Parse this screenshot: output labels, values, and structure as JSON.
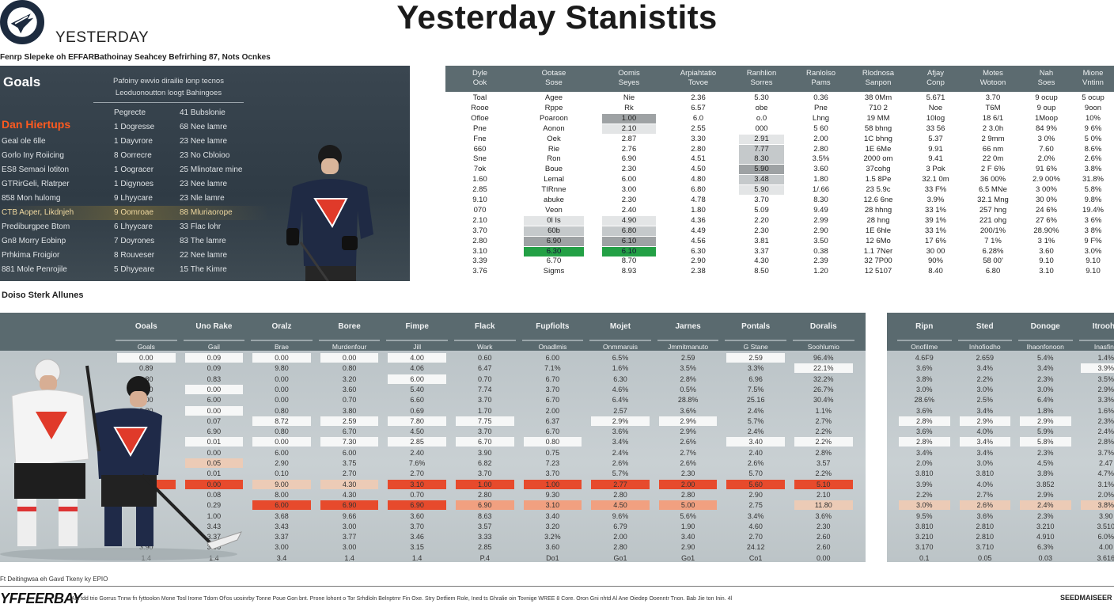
{
  "header": {
    "brand": "YESTERDAY",
    "title": "Yesterday Stanistits",
    "subline": "Fenrp Slepeke oh EFFARBathoinay Seahcey Befrirhing 87, Nots Ocnkes"
  },
  "goals_panel": {
    "title": "Goals",
    "subtitle_1": "Pafoiny ewvio dirailie lonp tecnos",
    "subtitle_2": "Leoduonoutton loogt Bahingoes",
    "player_name": "Dan Hiertups",
    "rows": [
      {
        "a": "",
        "b": "Pegrecte",
        "c": "41 Bubslonie"
      },
      {
        "a": "",
        "b": "1 Dogresse",
        "c": "68 Nee lamre"
      },
      {
        "a": "Geal ole 6lle",
        "b": "1 Dayvrore",
        "c": "23 Nee lamre"
      },
      {
        "a": "Gorlo Iny Roiicing",
        "b": "8 Oorrecre",
        "c": "23 No Cbloioo"
      },
      {
        "a": "ES8 Semaoi lotiton",
        "b": "1 Oogracer",
        "c": "25 Mlinotare mine"
      },
      {
        "a": "GTRirGeli, Rlatrper",
        "b": "1 Digynoes",
        "c": "23 Nee lamre"
      },
      {
        "a": "858 Mon hulomg",
        "b": "9 Lhyycare",
        "c": "23 Nle lamre"
      },
      {
        "a": "CTB Aoper, Likdnjeh",
        "b": "9 Oomroae",
        "c": "88 Mluriaorope"
      },
      {
        "a": "Prediburgpee Btom",
        "b": "6 Lhyycare",
        "c": "33 Flac lohr"
      },
      {
        "a": "Gn8 Morry Eobinp",
        "b": "7 Doyrones",
        "c": "83 The lamre"
      },
      {
        "a": "Prhkima Froigior",
        "b": "8 Rouveser",
        "c": "22 Nee lamre"
      },
      {
        "a": "881 Mole Penrojile",
        "b": "5 Dhyyeare",
        "c": "15 The Kimre"
      }
    ],
    "highlight_row": 7
  },
  "top_table": {
    "headers": [
      [
        "Dyle",
        "Ook"
      ],
      [
        "Ootase",
        "Sose"
      ],
      [
        "Oomis",
        "Seyes"
      ],
      [
        "Arpiahtatio",
        "Tovoe"
      ],
      [
        "Ranhlion",
        "Sorres"
      ],
      [
        "Ranlolso",
        "Pams"
      ],
      [
        "Rlodnosa",
        "Sanpon"
      ],
      [
        "Afjay",
        "Conp"
      ],
      [
        "Motes",
        "Wotoon"
      ],
      [
        "Nah",
        "Soes"
      ],
      [
        "Mione",
        "Vntinn"
      ]
    ],
    "rows": [
      [
        "Toal",
        "Agee",
        "Nie",
        "2.36",
        "5.30",
        "0.36",
        "38 0Mm",
        "5.671",
        "3.70",
        "9 ocup",
        "5 ocup"
      ],
      [
        "Rooe",
        "Rppe",
        "Rk",
        "6.57",
        "obe",
        "Pne",
        "710 2",
        "Noe",
        "T6M",
        "9 oup",
        "9oon"
      ],
      [
        "Ofloe",
        "Poaroon",
        "1.00",
        "6.0",
        "o.0",
        "Lhng",
        "19 MM",
        "10log",
        "18 6/1",
        "1Moop",
        "10%"
      ],
      [
        "Pne",
        "Aonon",
        "2.10",
        "2.55",
        "000",
        "5 60",
        "58 bhng",
        "33 56",
        "2 3.0h",
        "84 9%",
        "9 6%"
      ],
      [
        "Fne",
        "Oek",
        "2.87",
        "3.30",
        "2.91",
        "2.00",
        "1C bhng",
        "5.37",
        "2 9mm",
        "3 0%",
        "5 0%"
      ],
      [
        "660",
        "Rie",
        "2.76",
        "2.80",
        "7.77",
        "2.80",
        "1E 6Me",
        "9.91",
        "66 nm",
        "7.60",
        "8.6%"
      ],
      [
        "Sne",
        "Ron",
        "6.90",
        "4.51",
        "8.30",
        "3.5%",
        "2000 om",
        "9.41",
        "22 0m",
        "2.0%",
        "2.6%"
      ],
      [
        "7ok",
        "Boue",
        "2.30",
        "4.50",
        "5.90",
        "3.60",
        "37cohg",
        "3 Pok",
        "2 F 6%",
        "91 6%",
        "3.8%"
      ],
      [
        "1.60",
        "Lemal",
        "6.00",
        "4.80",
        "3.48",
        "1.80",
        "1.5 8Pe",
        "32.1 0m",
        "36 00%",
        "2.9 00%",
        "31.8%"
      ],
      [
        "2.85",
        "TIRnne",
        "3.00",
        "6.80",
        "5.90",
        "1/.66",
        "23 5.9c",
        "33 F%",
        "6.5 MNe",
        "3 00%",
        "5.8%"
      ],
      [
        "9.10",
        "abuke",
        "2.30",
        "4.78",
        "3.70",
        "8.30",
        "12.6 6ne",
        "3.9%",
        "32.1 Mng",
        "30 0%",
        "9.8%"
      ],
      [
        "070",
        "Veon",
        "2.40",
        "1.80",
        "5.09",
        "9.49",
        "28 hhng",
        "33 1%",
        "257 hng",
        "24 6%",
        "19.4%"
      ],
      [
        "2.10",
        "0l Is",
        "4.90",
        "4.36",
        "2.20",
        "2.99",
        "28 hng",
        "39 1%",
        "221 ohg",
        "27 6%",
        "3 6%"
      ],
      [
        "3.70",
        "60b",
        "6.80",
        "4.49",
        "2.30",
        "2.90",
        "1E 6hle",
        "33 1%",
        "200/1%",
        "28.90%",
        "3 8%"
      ],
      [
        "2.80",
        "6.90",
        "6.10",
        "4.56",
        "3.81",
        "3.50",
        "12 6Mo",
        "17 6%",
        "7 1%",
        "3 1%",
        "9 F%"
      ],
      [
        "3.10",
        "6.30",
        "6.10",
        "6.30",
        "3.37",
        "0.38",
        "1.1 7Ner",
        "30 00",
        "6.28%",
        "3.60",
        "3.0%"
      ],
      [
        "3.39",
        "6.70",
        "8.70",
        "2.90",
        "4.30",
        "2.39",
        "32 7P00",
        "90%",
        "58 00'",
        "9.10",
        "9.10"
      ],
      [
        "3.76",
        "Sigms",
        "8.93",
        "2.38",
        "8.50",
        "1.20",
        "12 5107",
        "8.40",
        "6.80",
        "3.10",
        "9.10"
      ]
    ],
    "highlights": [
      [
        2,
        2,
        "dark"
      ],
      [
        3,
        2,
        "light"
      ],
      [
        4,
        4,
        "light"
      ],
      [
        5,
        4,
        "mid"
      ],
      [
        6,
        4,
        "mid"
      ],
      [
        7,
        4,
        "dark"
      ],
      [
        8,
        4,
        "mid"
      ],
      [
        9,
        4,
        "light"
      ],
      [
        12,
        1,
        "light"
      ],
      [
        13,
        1,
        "mid"
      ],
      [
        14,
        1,
        "dark"
      ],
      [
        15,
        1,
        "green"
      ],
      [
        12,
        2,
        "light"
      ],
      [
        13,
        2,
        "mid"
      ],
      [
        14,
        2,
        "dark"
      ],
      [
        15,
        2,
        "green"
      ]
    ]
  },
  "section_label": "Doiso Sterk Allunes",
  "bottom_table": {
    "headers": [
      "Ooals",
      "Uno Rake",
      "Oralz",
      "Boree",
      "Fimpe",
      "Flack",
      "Fupfiolts",
      "Mojet",
      "Jarnes",
      "Pontals",
      "Doralis"
    ],
    "subheaders": [
      "Goals",
      "Gail",
      "Brae",
      "Murdenfour",
      "Jill",
      "Wark",
      "Onadlmis",
      "Onmmaruis",
      "Jmmitmanuto",
      "G Stane",
      "Soohlumio"
    ],
    "rows": [
      [
        "0.00",
        "0.09",
        "0.00",
        "0.00",
        "4.00",
        "0.60",
        "6.00",
        "6.5%",
        "2.59",
        "2.59",
        "96.4%"
      ],
      [
        "0.89",
        "0.09",
        "9.80",
        "0.80",
        "4.06",
        "6.47",
        "7.1%",
        "1.6%",
        "3.5%",
        "3.3%",
        "22.1%"
      ],
      [
        "0.80",
        "0.83",
        "0.00",
        "3.20",
        "6.00",
        "0.70",
        "6.70",
        "6.30",
        "2.8%",
        "6.96",
        "32.2%"
      ],
      [
        "0.00",
        "0.00",
        "0.00",
        "3.60",
        "5.40",
        "7.74",
        "3.70",
        "4.6%",
        "0.5%",
        "7.5%",
        "26.7%"
      ],
      [
        "0.00",
        "6.00",
        "0.00",
        "0.70",
        "6.60",
        "3.70",
        "6.70",
        "6.4%",
        "28.8%",
        "25.16",
        "30.4%"
      ],
      [
        "0.80",
        "0.00",
        "0.80",
        "3.80",
        "0.69",
        "1.70",
        "2.00",
        "2.57",
        "3.6%",
        "2.4%",
        "1.1%"
      ],
      [
        "8.72",
        "0.07",
        "8.72",
        "2.59",
        "7.80",
        "7.75",
        "6.37",
        "2.9%",
        "2.9%",
        "5.7%",
        "2.7%"
      ],
      [
        "6.90",
        "6.90",
        "0.80",
        "6.70",
        "4.50",
        "3.70",
        "6.70",
        "3.6%",
        "2.9%",
        "2.4%",
        "2.2%"
      ],
      [
        "0.01",
        "0.01",
        "0.00",
        "7.30",
        "2.85",
        "6.70",
        "0.80",
        "3.4%",
        "2.6%",
        "3.40",
        "2.2%"
      ],
      [
        "0.60",
        "0.00",
        "6.00",
        "6.00",
        "2.40",
        "3.90",
        "0.75",
        "2.4%",
        "2.7%",
        "2.40",
        "2.8%"
      ],
      [
        "2.90",
        "0.05",
        "2.90",
        "3.75",
        "7.6%",
        "6.82",
        "7.23",
        "2.6%",
        "2.6%",
        "2.6%",
        "3.57"
      ],
      [
        "0.01",
        "0.01",
        "0.10",
        "2.70",
        "2.70",
        "3.70",
        "3.70",
        "5.7%",
        "2.30",
        "5.70",
        "2.2%"
      ],
      [
        "0.00",
        "0.00",
        "9.00",
        "4.30",
        "3.10",
        "1.00",
        "1.00",
        "2.77",
        "2.00",
        "5.60",
        "5.10"
      ],
      [
        "8.00",
        "0.08",
        "8.00",
        "4.30",
        "0.70",
        "2.80",
        "9.30",
        "2.80",
        "2.80",
        "2.90",
        "2.10"
      ],
      [
        "0.29",
        "0.29",
        "6.00",
        "6.90",
        "6.90",
        "6.90",
        "3.10",
        "4.50",
        "5.00",
        "2.75",
        "11.80"
      ],
      [
        "1.90",
        "1.00",
        "3.68",
        "9.66",
        "3.60",
        "8.63",
        "3.40",
        "9.6%",
        "5.6%",
        "3.4%",
        "3.6%"
      ],
      [
        "3.43",
        "3.43",
        "3.43",
        "3.00",
        "3.70",
        "3.57",
        "3.20",
        "6.79",
        "1.90",
        "4.60",
        "2.30"
      ],
      [
        "3.37",
        "3.37",
        "3.37",
        "3.77",
        "3.46",
        "3.33",
        "3.2%",
        "2.00",
        "3.40",
        "2.70",
        "2.60"
      ],
      [
        "3.90",
        "3.90",
        "3.00",
        "3.00",
        "3.15",
        "2.85",
        "3.60",
        "2.80",
        "2.90",
        "24.12",
        "2.60"
      ],
      [
        "1.4",
        "1.4",
        "3.4",
        "1.4",
        "1.4",
        "P.4",
        "Do1",
        "Go1",
        "Go1",
        "Co1",
        "0.00"
      ]
    ],
    "highlights": [
      [
        0,
        0,
        "white"
      ],
      [
        0,
        1,
        "white"
      ],
      [
        0,
        2,
        "white"
      ],
      [
        0,
        3,
        "white"
      ],
      [
        0,
        4,
        "white"
      ],
      [
        0,
        9,
        "white"
      ],
      [
        1,
        10,
        "white"
      ],
      [
        2,
        4,
        "white"
      ],
      [
        3,
        1,
        "white"
      ],
      [
        5,
        1,
        "white"
      ],
      [
        6,
        2,
        "white"
      ],
      [
        6,
        3,
        "white"
      ],
      [
        6,
        4,
        "white"
      ],
      [
        6,
        5,
        "white"
      ],
      [
        6,
        7,
        "white"
      ],
      [
        6,
        8,
        "white"
      ],
      [
        8,
        1,
        "white"
      ],
      [
        8,
        2,
        "white"
      ],
      [
        8,
        3,
        "white"
      ],
      [
        8,
        4,
        "white"
      ],
      [
        8,
        5,
        "white"
      ],
      [
        8,
        6,
        "white"
      ],
      [
        8,
        9,
        "white"
      ],
      [
        8,
        10,
        "white"
      ],
      [
        10,
        1,
        "peach"
      ],
      [
        12,
        0,
        "red"
      ],
      [
        12,
        1,
        "red"
      ],
      [
        12,
        2,
        "peach"
      ],
      [
        12,
        3,
        "peach"
      ],
      [
        12,
        4,
        "red"
      ],
      [
        12,
        5,
        "red"
      ],
      [
        12,
        6,
        "red"
      ],
      [
        12,
        7,
        "red"
      ],
      [
        12,
        8,
        "red"
      ],
      [
        12,
        9,
        "red"
      ],
      [
        12,
        10,
        "red"
      ],
      [
        14,
        2,
        "red"
      ],
      [
        14,
        3,
        "red"
      ],
      [
        14,
        4,
        "red"
      ],
      [
        14,
        5,
        "salmon"
      ],
      [
        14,
        6,
        "salmon"
      ],
      [
        14,
        7,
        "salmon"
      ],
      [
        14,
        8,
        "salmon"
      ],
      [
        14,
        10,
        "peach"
      ]
    ]
  },
  "side_table": {
    "headers": [
      "Ripn",
      "Sted",
      "Donoge",
      "Itroohe"
    ],
    "subheaders": [
      "Onofilme",
      "Inhofiodho",
      "Ihaonfonoon",
      "Inasfinn"
    ],
    "rows": [
      [
        "4.6F9",
        "2.659",
        "5.4%",
        "1.4%"
      ],
      [
        "3.6%",
        "3.4%",
        "3.4%",
        "3.9%"
      ],
      [
        "3.8%",
        "2.2%",
        "2.3%",
        "3.5%"
      ],
      [
        "3.0%",
        "3.0%",
        "3.0%",
        "2.9%"
      ],
      [
        "28.6%",
        "2.5%",
        "6.4%",
        "3.3%"
      ],
      [
        "3.6%",
        "3.4%",
        "1.8%",
        "1.6%"
      ],
      [
        "2.8%",
        "2.9%",
        "2.9%",
        "2.3%"
      ],
      [
        "3.6%",
        "4.0%",
        "5.9%",
        "2.4%"
      ],
      [
        "2.8%",
        "3.4%",
        "5.8%",
        "2.8%"
      ],
      [
        "3.4%",
        "3.4%",
        "2.3%",
        "3.7%"
      ],
      [
        "2.0%",
        "3.0%",
        "4.5%",
        "2.47"
      ],
      [
        "3.810",
        "3.810",
        "3.8%",
        "4.7%"
      ],
      [
        "3.9%",
        "4.0%",
        "3.852",
        "3.1%"
      ],
      [
        "2.2%",
        "2.7%",
        "2.9%",
        "2.0%"
      ],
      [
        "3.0%",
        "2.6%",
        "2.4%",
        "3.8%"
      ],
      [
        "9.5%",
        "3.6%",
        "2.3%",
        "3.90"
      ],
      [
        "3.810",
        "2.810",
        "3.210",
        "3.510"
      ],
      [
        "3.210",
        "2.810",
        "4.910",
        "6.0%"
      ],
      [
        "3.170",
        "3.710",
        "6.3%",
        "4.00"
      ],
      [
        "0.1",
        "0.05",
        "0.03",
        "3.616"
      ]
    ],
    "highlights": [
      [
        1,
        3,
        "white"
      ],
      [
        6,
        0,
        "white"
      ],
      [
        6,
        1,
        "white"
      ],
      [
        6,
        2,
        "white"
      ],
      [
        8,
        0,
        "white"
      ],
      [
        8,
        1,
        "white"
      ],
      [
        8,
        2,
        "white"
      ],
      [
        14,
        0,
        "peach"
      ],
      [
        14,
        1,
        "peach"
      ],
      [
        14,
        2,
        "peach"
      ],
      [
        14,
        3,
        "peach"
      ]
    ]
  },
  "footer": {
    "caption": "Ft Deitingwsa eh Gavd Tkeny ky EPIO",
    "logo": "YFFEERBAY",
    "text": "Aui tdd trio Gorrus Tnnw fn fyttoolon Mone Tosl Irome Tdom Of'os uosinrby Tonne Poue Gon bnt. Prone lohont o Tor Srhdloln Belnptrnr Fin Oxe. Stry Detfiem Role, Ined ts Ghralie oin Tovnige WREE 8 Core. Oron Gni nhtd Al Ane Oiedep Ooenntr Tnon. Bab Jie ton Inin. 4l",
    "right": "SEEDMAISEER"
  }
}
